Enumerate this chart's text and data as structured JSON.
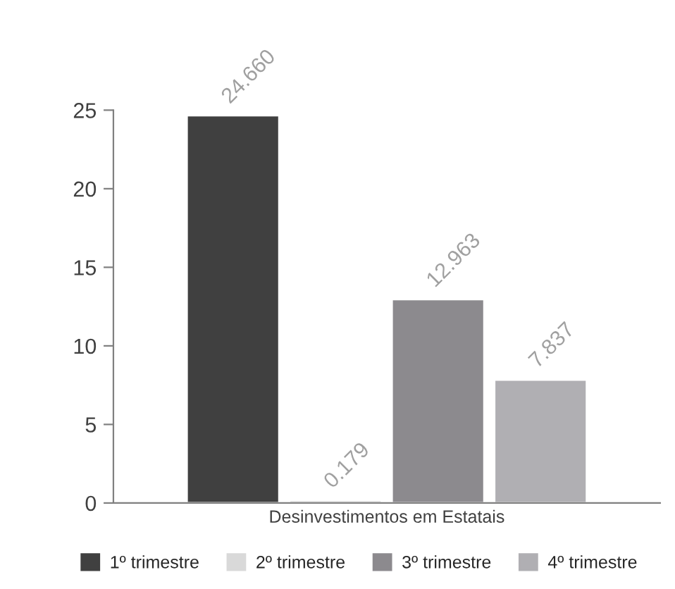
{
  "chart_data": {
    "type": "bar",
    "categories": [
      "Desinvestimentos em Estatais"
    ],
    "series": [
      {
        "name": "1º trimestre",
        "color": "#404040",
        "values": [
          24.66
        ],
        "value_labels": [
          "24.660"
        ]
      },
      {
        "name": "2º trimestre",
        "color": "#d9d9d9",
        "values": [
          0.179
        ],
        "value_labels": [
          "0.179"
        ]
      },
      {
        "name": "3º trimestre",
        "color": "#8c8a8e",
        "values": [
          12.963
        ],
        "value_labels": [
          "12.963"
        ]
      },
      {
        "name": "4º trimestre",
        "color": "#b0afb3",
        "values": [
          7.837
        ],
        "value_labels": [
          "7.837"
        ]
      }
    ],
    "ylim": [
      0,
      25
    ],
    "yticks": [
      0,
      5,
      10,
      15,
      20,
      25
    ],
    "grid": false,
    "legend": "bottom"
  }
}
